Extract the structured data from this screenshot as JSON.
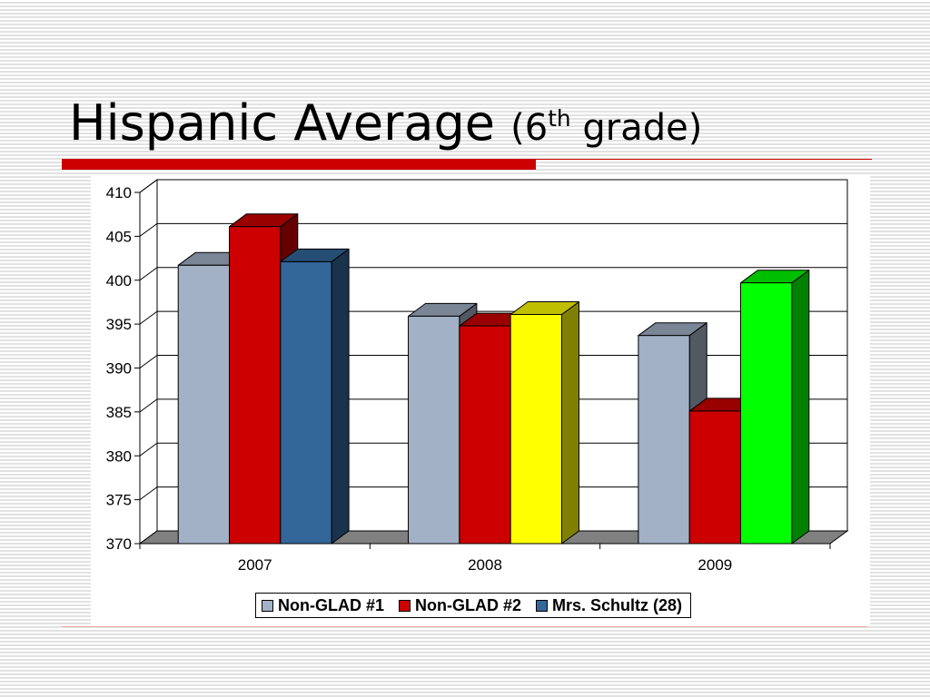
{
  "theme": {
    "accent_color": "#CC0000"
  },
  "chart_data": {
    "type": "bar",
    "three_d": true,
    "title": {
      "text": "Hispanic Average",
      "subtitle_prefix": "(6",
      "subtitle_sup": "th",
      "subtitle_suffix": " grade)"
    },
    "categories": [
      "2007",
      "2008",
      "2009"
    ],
    "series": [
      {
        "name": "Non-GLAD #1",
        "color": "#A2B1C6",
        "values": [
          401.7,
          395.9,
          393.7
        ]
      },
      {
        "name": "Non-GLAD #2",
        "color": "#CC0000",
        "values": [
          406.1,
          394.8,
          385.1
        ]
      },
      {
        "name": "Mrs. Schultz (28)",
        "color": "#336699",
        "point_colors": [
          "#336699",
          "#FFFF00",
          "#00FF00"
        ],
        "values": [
          402.1,
          396.1,
          399.7
        ]
      }
    ],
    "ylim": [
      370,
      410
    ],
    "yticks": [
      370,
      375,
      380,
      385,
      390,
      395,
      400,
      405,
      410
    ],
    "grid": true,
    "legend": "bottom",
    "floor_color": "#808080"
  }
}
